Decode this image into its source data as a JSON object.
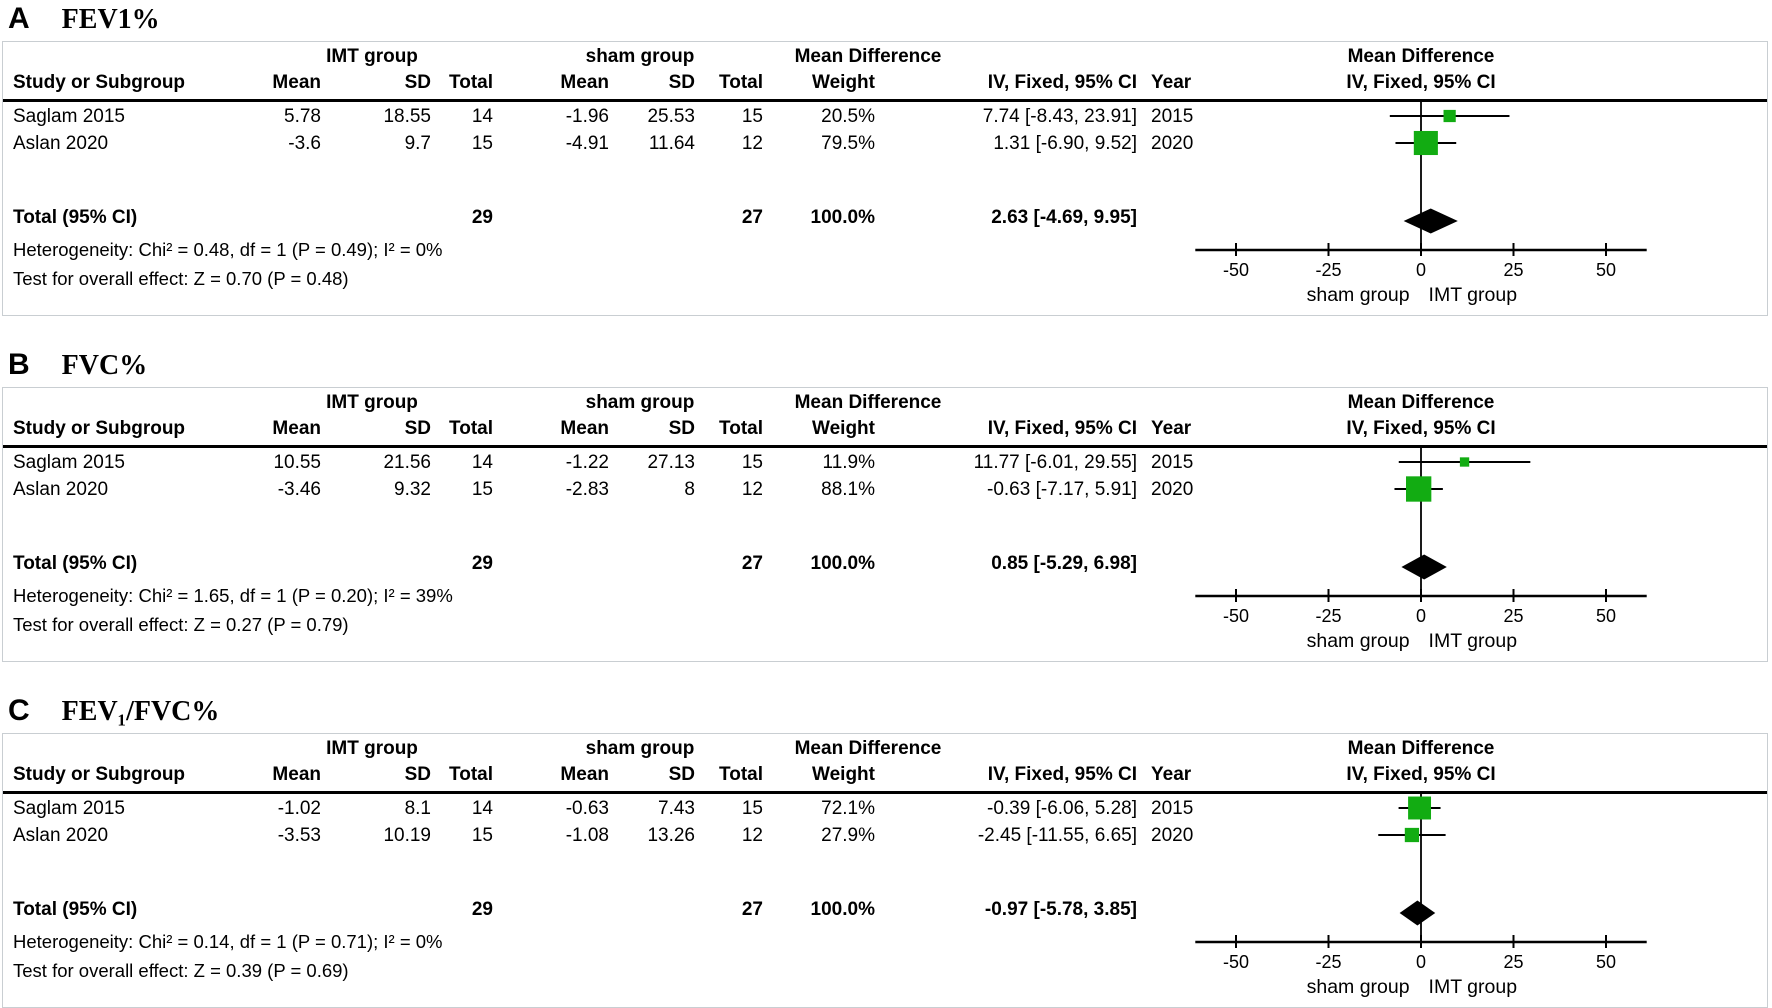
{
  "colors": {
    "marker_green": "#12AC12",
    "diamond_black": "#000000",
    "panel_border": "#c9ced2",
    "text": "#000000"
  },
  "chart_data": [
    {
      "type": "scatter",
      "subtype": "forest-plot",
      "panel": "A",
      "title": "FEV1%",
      "effect_label": "Mean Difference",
      "method_label": "IV, Fixed, 95% CI",
      "groups": [
        "IMT group",
        "sham group"
      ],
      "columns": [
        "Study or Subgroup",
        "Mean",
        "SD",
        "Total",
        "Mean",
        "SD",
        "Total",
        "Weight",
        "IV, Fixed, 95% CI",
        "Year"
      ],
      "studies": [
        {
          "study": "Saglam 2015",
          "imt_mean": "5.78",
          "imt_sd": "18.55",
          "imt_total": "14",
          "sham_mean": "-1.96",
          "sham_sd": "25.53",
          "sham_total": "15",
          "weight": "20.5%",
          "ci_text": "7.74 [-8.43, 23.91]",
          "year": "2015",
          "est": 7.74,
          "lo": -8.43,
          "hi": 23.91,
          "weight_pct": 20.5
        },
        {
          "study": "Aslan 2020",
          "imt_mean": "-3.6",
          "imt_sd": "9.7",
          "imt_total": "15",
          "sham_mean": "-4.91",
          "sham_sd": "11.64",
          "sham_total": "12",
          "weight": "79.5%",
          "ci_text": "1.31 [-6.90, 9.52]",
          "year": "2020",
          "est": 1.31,
          "lo": -6.9,
          "hi": 9.52,
          "weight_pct": 79.5
        }
      ],
      "total": {
        "label": "Total (95% CI)",
        "imt_total": "29",
        "sham_total": "27",
        "weight": "100.0%",
        "ci_text": "2.63 [-4.69, 9.95]",
        "est": 2.63,
        "lo": -4.69,
        "hi": 9.95
      },
      "heterogeneity": "Heterogeneity: Chi² = 0.48, df = 1 (P = 0.49); I² = 0%",
      "overall_effect": "Test for overall effect: Z = 0.70 (P = 0.48)",
      "axis": {
        "ticks": [
          -50,
          -25,
          0,
          25,
          50
        ],
        "range": [
          -61,
          61
        ],
        "left_label": "sham group",
        "right_label": "IMT group"
      }
    },
    {
      "type": "scatter",
      "subtype": "forest-plot",
      "panel": "B",
      "title": "FVC%",
      "effect_label": "Mean Difference",
      "method_label": "IV, Fixed, 95% CI",
      "groups": [
        "IMT group",
        "sham group"
      ],
      "columns": [
        "Study or Subgroup",
        "Mean",
        "SD",
        "Total",
        "Mean",
        "SD",
        "Total",
        "Weight",
        "IV, Fixed, 95% CI",
        "Year"
      ],
      "studies": [
        {
          "study": "Saglam 2015",
          "imt_mean": "10.55",
          "imt_sd": "21.56",
          "imt_total": "14",
          "sham_mean": "-1.22",
          "sham_sd": "27.13",
          "sham_total": "15",
          "weight": "11.9%",
          "ci_text": "11.77 [-6.01, 29.55]",
          "year": "2015",
          "est": 11.77,
          "lo": -6.01,
          "hi": 29.55,
          "weight_pct": 11.9
        },
        {
          "study": "Aslan 2020",
          "imt_mean": "-3.46",
          "imt_sd": "9.32",
          "imt_total": "15",
          "sham_mean": "-2.83",
          "sham_sd": "8",
          "sham_total": "12",
          "weight": "88.1%",
          "ci_text": "-0.63 [-7.17, 5.91]",
          "year": "2020",
          "est": -0.63,
          "lo": -7.17,
          "hi": 5.91,
          "weight_pct": 88.1
        }
      ],
      "total": {
        "label": "Total (95% CI)",
        "imt_total": "29",
        "sham_total": "27",
        "weight": "100.0%",
        "ci_text": "0.85 [-5.29, 6.98]",
        "est": 0.85,
        "lo": -5.29,
        "hi": 6.98
      },
      "heterogeneity": "Heterogeneity: Chi² = 1.65, df = 1 (P = 0.20); I² = 39%",
      "overall_effect": "Test for overall effect: Z = 0.27 (P = 0.79)",
      "axis": {
        "ticks": [
          -50,
          -25,
          0,
          25,
          50
        ],
        "range": [
          -61,
          61
        ],
        "left_label": "sham group",
        "right_label": "IMT group"
      }
    },
    {
      "type": "scatter",
      "subtype": "forest-plot",
      "panel": "C",
      "title": "FEV₁/FVC%",
      "effect_label": "Mean Difference",
      "method_label": "IV, Fixed, 95% CI",
      "groups": [
        "IMT group",
        "sham group"
      ],
      "columns": [
        "Study or Subgroup",
        "Mean",
        "SD",
        "Total",
        "Mean",
        "SD",
        "Total",
        "Weight",
        "IV, Fixed, 95% CI",
        "Year"
      ],
      "studies": [
        {
          "study": "Saglam 2015",
          "imt_mean": "-1.02",
          "imt_sd": "8.1",
          "imt_total": "14",
          "sham_mean": "-0.63",
          "sham_sd": "7.43",
          "sham_total": "15",
          "weight": "72.1%",
          "ci_text": "-0.39 [-6.06, 5.28]",
          "year": "2015",
          "est": -0.39,
          "lo": -6.06,
          "hi": 5.28,
          "weight_pct": 72.1
        },
        {
          "study": "Aslan 2020",
          "imt_mean": "-3.53",
          "imt_sd": "10.19",
          "imt_total": "15",
          "sham_mean": "-1.08",
          "sham_sd": "13.26",
          "sham_total": "12",
          "weight": "27.9%",
          "ci_text": "-2.45 [-11.55, 6.65]",
          "year": "2020",
          "est": -2.45,
          "lo": -11.55,
          "hi": 6.65,
          "weight_pct": 27.9
        }
      ],
      "total": {
        "label": "Total (95% CI)",
        "imt_total": "29",
        "sham_total": "27",
        "weight": "100.0%",
        "ci_text": "-0.97 [-5.78, 3.85]",
        "est": -0.97,
        "lo": -5.78,
        "hi": 3.85
      },
      "heterogeneity": "Heterogeneity: Chi² = 0.14, df = 1 (P = 0.71); I² = 0%",
      "overall_effect": "Test for overall effect: Z = 0.39 (P = 0.69)",
      "heterogeneity_note": "",
      "axis": {
        "ticks": [
          -50,
          -25,
          0,
          25,
          50
        ],
        "range": [
          -61,
          61
        ],
        "left_label": "sham group",
        "right_label": "IMT group"
      }
    }
  ]
}
